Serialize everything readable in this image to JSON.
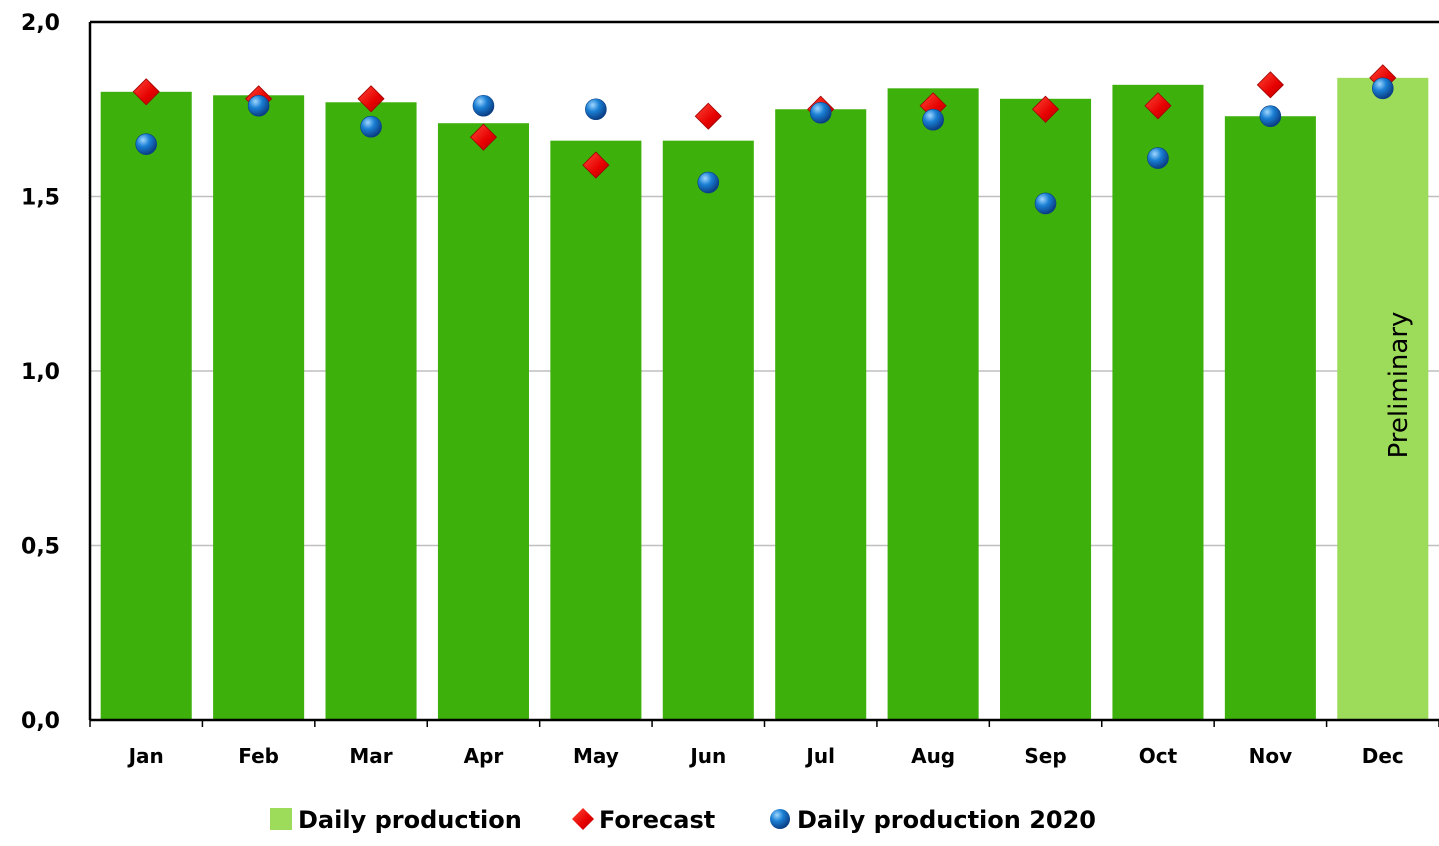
{
  "chart_data": {
    "type": "bar",
    "categories": [
      "Jan",
      "Feb",
      "Mar",
      "Apr",
      "May",
      "Jun",
      "Jul",
      "Aug",
      "Sep",
      "Oct",
      "Nov",
      "Dec"
    ],
    "series": [
      {
        "name": "Daily production",
        "type": "bar",
        "values": [
          1.8,
          1.79,
          1.77,
          1.71,
          1.66,
          1.66,
          1.75,
          1.81,
          1.78,
          1.82,
          1.73,
          1.84
        ],
        "color": "#3eb00c",
        "preliminary_color": "#9cdc5a"
      },
      {
        "name": "Forecast",
        "type": "scatter",
        "marker": "diamond",
        "values": [
          1.8,
          1.78,
          1.78,
          1.67,
          1.59,
          1.73,
          1.75,
          1.76,
          1.75,
          1.76,
          1.82,
          1.84
        ],
        "color": "#ee0000"
      },
      {
        "name": "Daily production 2020",
        "type": "scatter",
        "marker": "circle",
        "values": [
          1.65,
          1.76,
          1.7,
          1.76,
          1.75,
          1.54,
          1.74,
          1.72,
          1.48,
          1.61,
          1.73,
          1.81
        ],
        "color": "#1a7fd4"
      }
    ],
    "y_ticks": [
      "0,0",
      "0,5",
      "1,0",
      "1,5",
      "2,0"
    ],
    "y_tick_values": [
      0,
      0.5,
      1.0,
      1.5,
      2.0
    ],
    "ylim": [
      0,
      2.0
    ],
    "grid": true,
    "legend_position": "bottom",
    "annotation": {
      "text": "Preliminary",
      "category": "Dec"
    }
  }
}
